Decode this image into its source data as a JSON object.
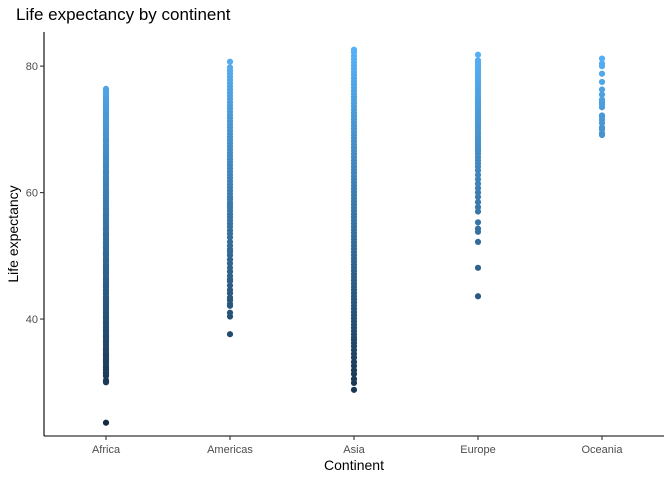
{
  "chart_data": {
    "type": "scatter",
    "title": "Life expectancy by continent",
    "xlabel": "Continent",
    "ylabel": "Life expectancy",
    "categories": [
      "Africa",
      "Americas",
      "Asia",
      "Europe",
      "Oceania"
    ],
    "yticks": [
      40,
      60,
      80
    ],
    "ylim": [
      21.5,
      85.4
    ],
    "grid": false,
    "color_scale": {
      "low": "#132B43",
      "high": "#56B1F7",
      "mapped_to": "y"
    },
    "series": [
      {
        "category": "Africa",
        "values": [
          23.6,
          30.0,
          30.3,
          31.0,
          31.3,
          31.6,
          32.0,
          32.3,
          32.6,
          33.0,
          33.3,
          33.6,
          34.0,
          34.3,
          34.6,
          35.0,
          35.3,
          35.6,
          36.0,
          36.3,
          36.6,
          37.0,
          37.3,
          37.6,
          38.0,
          38.3,
          38.6,
          39.0,
          39.3,
          39.6,
          40.0,
          40.3,
          40.6,
          41.0,
          41.3,
          41.6,
          42.0,
          42.3,
          42.6,
          43.0,
          43.3,
          43.6,
          44.0,
          44.3,
          44.6,
          45.0,
          45.3,
          45.6,
          46.0,
          46.3,
          46.6,
          47.0,
          47.3,
          47.6,
          48.0,
          48.3,
          48.6,
          49.0,
          49.3,
          49.6,
          50.0,
          50.3,
          50.6,
          51.0,
          51.3,
          51.6,
          52.0,
          52.3,
          52.6,
          53.0,
          53.3,
          53.6,
          54.0,
          54.3,
          54.6,
          55.0,
          55.3,
          55.6,
          56.0,
          56.3,
          56.6,
          57.0,
          57.3,
          57.6,
          58.0,
          58.3,
          58.6,
          59.0,
          59.3,
          59.6,
          60.0,
          60.3,
          60.6,
          61.0,
          61.3,
          61.6,
          62.0,
          62.3,
          62.6,
          63.0,
          63.3,
          63.6,
          64.0,
          64.3,
          64.6,
          65.0,
          65.3,
          65.6,
          66.0,
          66.3,
          66.6,
          67.0,
          67.3,
          67.6,
          68.0,
          68.3,
          68.6,
          69.0,
          69.3,
          69.6,
          70.0,
          70.3,
          70.6,
          71.0,
          71.3,
          71.6,
          72.0,
          72.3,
          72.6,
          73.0,
          73.3,
          73.6,
          74.0,
          74.3,
          74.6,
          75.0,
          75.3,
          75.6,
          76.0,
          76.4
        ]
      },
      {
        "category": "Americas",
        "values": [
          37.6,
          40.4,
          41.0,
          42.1,
          42.4,
          43.0,
          43.4,
          44.1,
          44.6,
          45.3,
          46.0,
          46.3,
          46.8,
          47.5,
          48.1,
          48.8,
          49.4,
          50.1,
          50.6,
          51.0,
          51.6,
          52.2,
          52.9,
          53.5,
          54.0,
          54.6,
          55.1,
          55.6,
          56.1,
          56.6,
          57.1,
          57.6,
          58.0,
          58.4,
          58.9,
          59.3,
          59.8,
          60.3,
          60.8,
          61.3,
          61.8,
          62.3,
          62.8,
          63.3,
          63.8,
          64.3,
          64.8,
          65.3,
          65.8,
          66.3,
          66.8,
          67.3,
          67.8,
          68.3,
          68.8,
          69.3,
          69.8,
          70.3,
          70.8,
          71.3,
          71.8,
          72.3,
          72.8,
          73.3,
          73.8,
          74.3,
          74.8,
          75.3,
          75.8,
          76.3,
          76.8,
          77.3,
          77.8,
          78.3,
          78.8,
          79.3,
          79.8,
          80.7
        ]
      },
      {
        "category": "Asia",
        "values": [
          28.8,
          29.9,
          30.5,
          31.3,
          31.9,
          32.6,
          33.2,
          33.9,
          34.5,
          35.1,
          35.7,
          36.2,
          36.7,
          37.1,
          37.6,
          38.1,
          38.6,
          39.1,
          39.6,
          40.1,
          40.6,
          41.1,
          41.6,
          42.1,
          42.6,
          43.1,
          43.6,
          44.1,
          44.6,
          45.1,
          45.6,
          46.1,
          46.6,
          47.1,
          47.6,
          48.1,
          48.6,
          49.1,
          49.6,
          50.1,
          50.6,
          51.1,
          51.6,
          52.1,
          52.6,
          53.1,
          53.6,
          54.1,
          54.6,
          55.1,
          55.6,
          56.1,
          56.6,
          57.1,
          57.6,
          58.1,
          58.6,
          59.1,
          59.6,
          60.1,
          60.6,
          61.1,
          61.6,
          62.1,
          62.6,
          63.1,
          63.6,
          64.1,
          64.6,
          65.1,
          65.6,
          66.1,
          66.6,
          67.1,
          67.6,
          68.1,
          68.6,
          69.1,
          69.6,
          70.1,
          70.6,
          71.1,
          71.6,
          72.1,
          72.6,
          73.1,
          73.6,
          74.1,
          74.6,
          75.1,
          75.6,
          76.1,
          76.6,
          77.1,
          77.6,
          78.1,
          78.6,
          79.1,
          79.6,
          80.1,
          80.6,
          81.1,
          81.6,
          82.2,
          82.6
        ]
      },
      {
        "category": "Europe",
        "values": [
          43.6,
          48.1,
          52.2,
          53.8,
          54.3,
          55.3,
          57.0,
          57.7,
          58.5,
          59.3,
          60.0,
          60.7,
          61.4,
          62.1,
          62.8,
          63.5,
          64.1,
          64.6,
          65.1,
          65.6,
          66.1,
          66.5,
          66.9,
          67.3,
          67.7,
          68.1,
          68.5,
          68.9,
          69.3,
          69.7,
          70.1,
          70.5,
          70.9,
          71.3,
          71.7,
          72.1,
          72.5,
          72.9,
          73.3,
          73.7,
          74.1,
          74.5,
          74.9,
          75.3,
          75.7,
          76.1,
          76.5,
          76.9,
          77.3,
          77.7,
          78.1,
          78.5,
          78.9,
          79.3,
          79.7,
          80.1,
          80.5,
          80.9,
          81.8
        ]
      },
      {
        "category": "Oceania",
        "values": [
          69.1,
          69.4,
          70.0,
          70.3,
          71.0,
          71.5,
          72.0,
          72.2,
          73.5,
          74.0,
          74.3,
          74.7,
          75.5,
          76.3,
          77.5,
          78.8,
          80.0,
          80.4,
          81.2
        ]
      }
    ]
  }
}
